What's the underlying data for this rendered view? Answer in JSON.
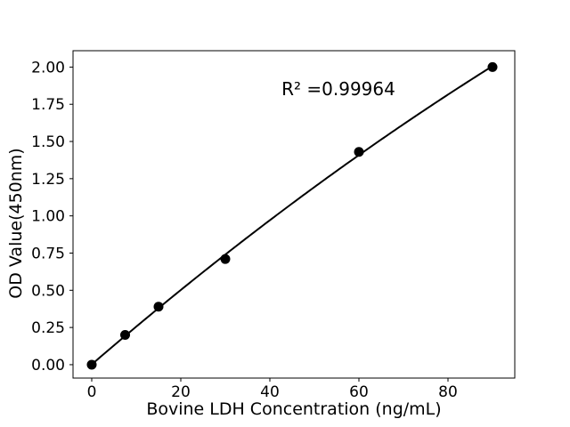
{
  "figure": {
    "background": "#ffffff",
    "text_color": "#000000",
    "frame_color": "#000000"
  },
  "chart_data": {
    "type": "scatter",
    "title": "",
    "xlabel": "Bovine LDH Concentration (ng/mL)",
    "ylabel": "OD Value(450nm)",
    "x": [
      0,
      7.5,
      15,
      30,
      60,
      90
    ],
    "y": [
      0.0,
      0.2,
      0.39,
      0.71,
      1.43,
      2.0
    ],
    "fit": "quadratic",
    "xtick_labels": [
      "0",
      "20",
      "40",
      "60",
      "80"
    ],
    "ytick_labels": [
      "0.00",
      "0.25",
      "0.50",
      "0.75",
      "1.00",
      "1.25",
      "1.50",
      "1.75",
      "2.00"
    ],
    "xlim": [
      -4.2,
      95.0
    ],
    "ylim": [
      -0.09,
      2.11
    ],
    "grid": false,
    "legend": null,
    "annotation": {
      "text": "R² =0.99964",
      "x": 55.4,
      "y": 1.81
    },
    "line_color": "#000000",
    "line_width": 2,
    "marker_color": "#000000",
    "marker_size": 5.5
  }
}
